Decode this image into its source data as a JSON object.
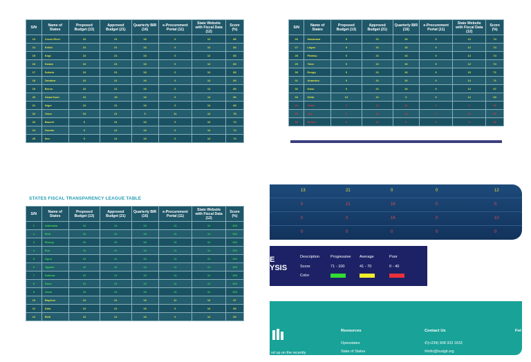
{
  "headers": [
    "S/N",
    "Name of States",
    "Proposed Budget (13)",
    "Approved Budget (21)",
    "Quarterly BIR (16)",
    "e-Procurement Portal (11)",
    "State Website with Fiscal Data (12)",
    "Score (%)"
  ],
  "table1": [
    [
      "13",
      "Cross River",
      "13",
      "21",
      "16",
      "0",
      "12",
      "86"
    ],
    [
      "14",
      "Kebbi",
      "13",
      "21",
      "16",
      "0",
      "12",
      "83"
    ],
    [
      "15",
      "Kogi",
      "13",
      "21",
      "16",
      "0",
      "12",
      "83"
    ],
    [
      "16",
      "Kwara",
      "13",
      "21",
      "16",
      "0",
      "12",
      "83"
    ],
    [
      "17",
      "Sokoto",
      "13",
      "21",
      "16",
      "0",
      "12",
      "83"
    ],
    [
      "18",
      "Zamfara",
      "13",
      "21",
      "16",
      "0",
      "12",
      "83"
    ],
    [
      "19",
      "Borno",
      "13",
      "21",
      "16",
      "0",
      "12",
      "80"
    ],
    [
      "20",
      "Akwa Ibom",
      "13",
      "15",
      "16",
      "0",
      "12",
      "80"
    ],
    [
      "21",
      "Niger",
      "13",
      "21",
      "16",
      "0",
      "12",
      "80"
    ],
    [
      "22",
      "Osun",
      "13",
      "21",
      "0",
      "11",
      "12",
      "78"
    ],
    [
      "23",
      "Bauchi",
      "0",
      "21",
      "16",
      "0",
      "12",
      "74"
    ],
    [
      "24",
      "Gombe",
      "0",
      "21",
      "16",
      "0",
      "12",
      "74"
    ],
    [
      "25",
      "Imo",
      "0",
      "21",
      "16",
      "0",
      "12",
      "74"
    ]
  ],
  "table2": [
    [
      "26",
      "Nasarawa",
      "0",
      "21",
      "16",
      "0",
      "12",
      "74"
    ],
    [
      "27",
      "Lagos",
      "0",
      "21",
      "16",
      "0",
      "12",
      "74"
    ],
    [
      "28",
      "Plateau",
      "0",
      "21",
      "16",
      "0",
      "12",
      "74"
    ],
    [
      "29",
      "Yobe",
      "0",
      "21",
      "16",
      "0",
      "12",
      "74"
    ],
    [
      "30",
      "Enugu",
      "0",
      "21",
      "16",
      "0",
      "10",
      "71"
    ],
    [
      "31",
      "Anambra",
      "0",
      "21",
      "16",
      "0",
      "12",
      "71"
    ],
    [
      "32",
      "Kano",
      "0",
      "21",
      "16",
      "0",
      "12",
      "67"
    ],
    [
      "33",
      "Delta",
      "13",
      "21",
      "0",
      "0",
      "12",
      "63"
    ],
    [
      "34",
      "Ondo",
      "0",
      "21",
      "16",
      "0",
      "0",
      "55"
    ],
    [
      "35",
      "Oyo",
      "0",
      "21",
      "16",
      "0",
      "12",
      "55"
    ],
    [
      "36",
      "Benue",
      "0",
      "21",
      "0",
      "0",
      "0",
      "28"
    ]
  ],
  "table3_title": "STATES FISCAL TRANSPARENCY LEAGUE TABLE",
  "table3": [
    [
      "1",
      "Adamawa",
      "13",
      "21",
      "16",
      "11",
      "12",
      "100"
    ],
    [
      "2",
      "Ekiti",
      "13",
      "21",
      "16",
      "11",
      "12",
      "100"
    ],
    [
      "3",
      "Ebonyi",
      "13",
      "21",
      "16",
      "11",
      "12",
      "100"
    ],
    [
      "4",
      "Edo",
      "13",
      "21",
      "16",
      "11",
      "12",
      "100"
    ],
    [
      "5",
      "Ogun",
      "13",
      "21",
      "16",
      "11",
      "12",
      "100"
    ],
    [
      "6",
      "Jigawa",
      "13",
      "21",
      "16",
      "11",
      "12",
      "100"
    ],
    [
      "7",
      "Kaduna",
      "13",
      "21",
      "16",
      "11",
      "12",
      "100"
    ],
    [
      "8",
      "Kano",
      "13",
      "21",
      "16",
      "11",
      "12",
      "100"
    ],
    [
      "9",
      "Ondo",
      "13",
      "21",
      "16",
      "11",
      "12",
      "100"
    ],
    [
      "10",
      "Bayelsa",
      "13",
      "21",
      "16",
      "11",
      "12",
      "97"
    ],
    [
      "11",
      "Abia",
      "13",
      "21",
      "16",
      "0",
      "12",
      "83"
    ],
    [
      "12",
      "Ekiti",
      "13",
      "21",
      "16",
      "0",
      "12",
      "83"
    ]
  ],
  "banner": {
    "rows": [
      [
        "13",
        "21",
        "0",
        "0",
        "12"
      ],
      [
        "0",
        "21",
        "16",
        "0",
        "0"
      ],
      [
        "0",
        "0",
        "16",
        "0",
        "10"
      ],
      [
        "0",
        "0",
        "0",
        "0",
        "0"
      ]
    ]
  },
  "legend": {
    "big_text": "E\nYSIS",
    "description": "Description",
    "progressive": "Progressive",
    "average": "Average",
    "poor": "Poor",
    "score": "Score",
    "color": "Color",
    "range_progressive": "71 - 100",
    "range_average": "41 - 70",
    "range_poor": "0 - 40",
    "c_progressive": "#33dd33",
    "c_average": "#f2ef2a",
    "c_poor": "#e8303a"
  },
  "footer": {
    "resources": "Resources",
    "contact": "Contact Us",
    "fol": "Fol",
    "link1": "Openstates",
    "link2": "State of States",
    "phone": "(+234) 908 333 1633",
    "email": "info@budgit.org",
    "left_text": "nd up on the recently"
  }
}
